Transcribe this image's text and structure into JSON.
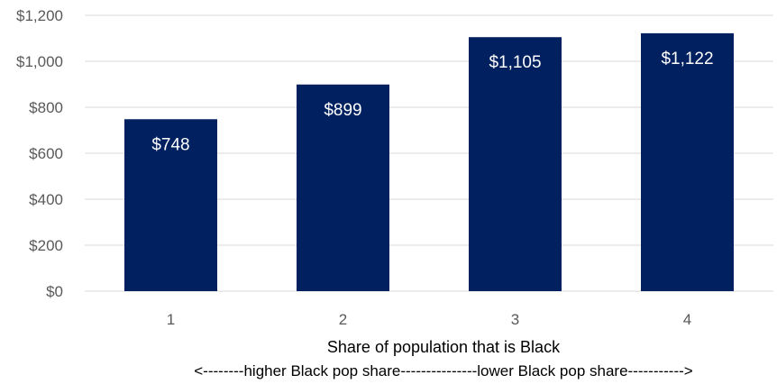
{
  "chart_data": {
    "type": "bar",
    "categories": [
      "1",
      "2",
      "3",
      "4"
    ],
    "values": [
      748,
      899,
      1105,
      1122
    ],
    "value_labels": [
      "$748",
      "$899",
      "$1,105",
      "$1,122"
    ],
    "xlabel": "Share of population that is Black",
    "annotation": "<--------higher Black pop share---------------lower Black pop share----------->",
    "ylim": [
      0,
      1200
    ],
    "y_ticks": [
      0,
      200,
      400,
      600,
      800,
      1000,
      1200
    ],
    "y_tick_labels": [
      "$0",
      "$200",
      "$400",
      "$600",
      "$800",
      "$1,000",
      "$1,200"
    ],
    "grid": true,
    "legend": "none",
    "bar_color": "#002060"
  }
}
